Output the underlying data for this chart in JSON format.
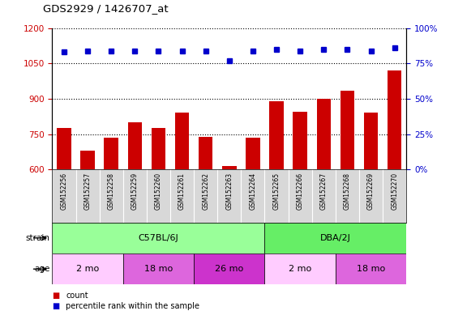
{
  "title": "GDS2929 / 1426707_at",
  "samples": [
    "GSM152256",
    "GSM152257",
    "GSM152258",
    "GSM152259",
    "GSM152260",
    "GSM152261",
    "GSM152262",
    "GSM152263",
    "GSM152264",
    "GSM152265",
    "GSM152266",
    "GSM152267",
    "GSM152268",
    "GSM152269",
    "GSM152270"
  ],
  "counts": [
    775,
    680,
    735,
    800,
    775,
    840,
    740,
    615,
    735,
    890,
    845,
    900,
    935,
    840,
    1020
  ],
  "percentiles": [
    83,
    84,
    84,
    84,
    84,
    84,
    84,
    77,
    84,
    85,
    84,
    85,
    85,
    84,
    86
  ],
  "ylim_left": [
    600,
    1200
  ],
  "ylim_right": [
    0,
    100
  ],
  "yticks_left": [
    600,
    750,
    900,
    1050,
    1200
  ],
  "yticks_right": [
    0,
    25,
    50,
    75,
    100
  ],
  "bar_color": "#cc0000",
  "dot_color": "#0000cc",
  "strain_groups": [
    {
      "label": "C57BL/6J",
      "start": 0,
      "end": 9,
      "color": "#99ff99"
    },
    {
      "label": "DBA/2J",
      "start": 9,
      "end": 15,
      "color": "#66ee66"
    }
  ],
  "age_groups": [
    {
      "label": "2 mo",
      "start": 0,
      "end": 3,
      "color": "#ffccff"
    },
    {
      "label": "18 mo",
      "start": 3,
      "end": 6,
      "color": "#dd66dd"
    },
    {
      "label": "26 mo",
      "start": 6,
      "end": 9,
      "color": "#cc33cc"
    },
    {
      "label": "2 mo",
      "start": 9,
      "end": 12,
      "color": "#ffccff"
    },
    {
      "label": "18 mo",
      "start": 12,
      "end": 15,
      "color": "#dd66dd"
    }
  ],
  "tick_label_color_left": "#cc0000",
  "tick_label_color_right": "#0000cc",
  "label_bg_color": "#d8d8d8",
  "percentile_scale_factor": 8.333
}
